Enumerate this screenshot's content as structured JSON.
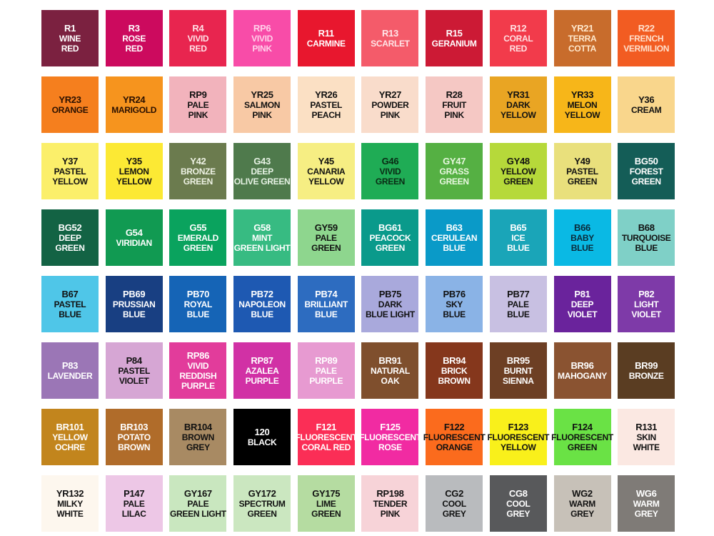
{
  "swatches": [
    {
      "code": "R1",
      "name": [
        "WINE",
        "RED"
      ],
      "color": "#7b2140",
      "text": "#ffffff"
    },
    {
      "code": "R3",
      "name": [
        "ROSE",
        "RED"
      ],
      "color": "#cc0a5e",
      "text": "#ffffff"
    },
    {
      "code": "R4",
      "name": [
        "VIVID",
        "RED"
      ],
      "color": "#e8254f",
      "text": "#ffe0e6"
    },
    {
      "code": "RP6",
      "name": [
        "VIVID",
        "PINK"
      ],
      "color": "#f84ca8",
      "text": "#ffd0ea"
    },
    {
      "code": "R11",
      "name": [
        "CARMINE"
      ],
      "color": "#e8172e",
      "text": "#ffffff"
    },
    {
      "code": "R13",
      "name": [
        "SCARLET"
      ],
      "color": "#f45b6a",
      "text": "#ffe6e8"
    },
    {
      "code": "R15",
      "name": [
        "GERANIUM"
      ],
      "color": "#cc1a35",
      "text": "#ffffff"
    },
    {
      "code": "R12",
      "name": [
        "CORAL",
        "RED"
      ],
      "color": "#f23b4b",
      "text": "#ffe0e2"
    },
    {
      "code": "YR21",
      "name": [
        "TERRA",
        "COTTA"
      ],
      "color": "#c86c2c",
      "text": "#ffe8cc"
    },
    {
      "code": "R22",
      "name": [
        "FRENCH",
        "VERMILION"
      ],
      "color": "#f25c22",
      "text": "#ffe0cc"
    },
    {
      "code": "YR23",
      "name": [
        "ORANGE"
      ],
      "color": "#f57f1e",
      "text": "#2a1000"
    },
    {
      "code": "YR24",
      "name": [
        "MARIGOLD"
      ],
      "color": "#f6941e",
      "text": "#2a1000"
    },
    {
      "code": "RP9",
      "name": [
        "PALE",
        "PINK"
      ],
      "color": "#f2b3bc",
      "text": "#111111"
    },
    {
      "code": "YR25",
      "name": [
        "SALMON",
        "PINK"
      ],
      "color": "#f8c9a5",
      "text": "#111111"
    },
    {
      "code": "YR26",
      "name": [
        "PASTEL",
        "PEACH"
      ],
      "color": "#fbe0c4",
      "text": "#111111"
    },
    {
      "code": "YR27",
      "name": [
        "POWDER",
        "PINK"
      ],
      "color": "#f9dccb",
      "text": "#111111"
    },
    {
      "code": "R28",
      "name": [
        "FRUIT",
        "PINK"
      ],
      "color": "#f5c8c4",
      "text": "#111111"
    },
    {
      "code": "YR31",
      "name": [
        "DARK",
        "YELLOW"
      ],
      "color": "#e9a523",
      "text": "#111111"
    },
    {
      "code": "YR33",
      "name": [
        "MELON",
        "YELLOW"
      ],
      "color": "#f7b619",
      "text": "#111111"
    },
    {
      "code": "Y36",
      "name": [
        "CREAM"
      ],
      "color": "#f9d68c",
      "text": "#111111"
    },
    {
      "code": "Y37",
      "name": [
        "PASTEL",
        "YELLOW"
      ],
      "color": "#fbef6a",
      "text": "#111111"
    },
    {
      "code": "Y35",
      "name": [
        "LEMON",
        "YELLOW"
      ],
      "color": "#fce934",
      "text": "#111111"
    },
    {
      "code": "Y42",
      "name": [
        "BRONZE",
        "GREEN"
      ],
      "color": "#6b7b4e",
      "text": "#eef2e4"
    },
    {
      "code": "G43",
      "name": [
        "DEEP",
        "OLIVE GREEN"
      ],
      "color": "#4f7a4c",
      "text": "#e6f2e4"
    },
    {
      "code": "Y45",
      "name": [
        "CANARIA",
        "YELLOW"
      ],
      "color": "#f6ee83",
      "text": "#111111"
    },
    {
      "code": "G46",
      "name": [
        "VIVID",
        "GREEN"
      ],
      "color": "#1fac55",
      "text": "#0a2a14"
    },
    {
      "code": "GY47",
      "name": [
        "GRASS",
        "GREEN"
      ],
      "color": "#55b043",
      "text": "#e8f8e0"
    },
    {
      "code": "GY48",
      "name": [
        "YELLOW",
        "GREEN"
      ],
      "color": "#b6d93a",
      "text": "#111111"
    },
    {
      "code": "Y49",
      "name": [
        "PASTEL",
        "GREEN"
      ],
      "color": "#e9e07c",
      "text": "#111111"
    },
    {
      "code": "BG50",
      "name": [
        "FOREST",
        "GREEN"
      ],
      "color": "#145d57",
      "text": "#ffffff"
    },
    {
      "code": "BG52",
      "name": [
        "DEEP",
        "GREEN"
      ],
      "color": "#136344",
      "text": "#ffffff"
    },
    {
      "code": "G54",
      "name": [
        "VIRIDIAN"
      ],
      "color": "#119a52",
      "text": "#ffffff"
    },
    {
      "code": "G55",
      "name": [
        "EMERALD",
        "GREEN"
      ],
      "color": "#0aa35e",
      "text": "#ffffff"
    },
    {
      "code": "G58",
      "name": [
        "MINT",
        "GREEN LIGHT"
      ],
      "color": "#37bb82",
      "text": "#ffffff"
    },
    {
      "code": "GY59",
      "name": [
        "PALE",
        "GREEN"
      ],
      "color": "#8ed68e",
      "text": "#111111"
    },
    {
      "code": "BG61",
      "name": [
        "PEACOCK",
        "GREEN"
      ],
      "color": "#0a9a8b",
      "text": "#ffffff"
    },
    {
      "code": "B63",
      "name": [
        "CERULEAN",
        "BLUE"
      ],
      "color": "#0a9ac8",
      "text": "#ffffff"
    },
    {
      "code": "B65",
      "name": [
        "ICE",
        "BLUE"
      ],
      "color": "#1aa5b8",
      "text": "#ffffff"
    },
    {
      "code": "B66",
      "name": [
        "BABY",
        "BLUE"
      ],
      "color": "#0ab9e4",
      "text": "#0a2a3a"
    },
    {
      "code": "B68",
      "name": [
        "TURQUOISE",
        "BLUE"
      ],
      "color": "#7fd0c7",
      "text": "#111111"
    },
    {
      "code": "B67",
      "name": [
        "PASTEL",
        "BLUE"
      ],
      "color": "#4fc6e8",
      "text": "#111111"
    },
    {
      "code": "PB69",
      "name": [
        "PRUSSIAN",
        "BLUE"
      ],
      "color": "#183f82",
      "text": "#ffffff"
    },
    {
      "code": "PB70",
      "name": [
        "ROYAL",
        "BLUE"
      ],
      "color": "#1564b6",
      "text": "#ffffff"
    },
    {
      "code": "PB72",
      "name": [
        "NAPOLEON",
        "BLUE"
      ],
      "color": "#1e59b2",
      "text": "#ffffff"
    },
    {
      "code": "PB74",
      "name": [
        "BRILLIANT",
        "BLUE"
      ],
      "color": "#2d6cc0",
      "text": "#ffffff"
    },
    {
      "code": "PB75",
      "name": [
        "DARK",
        "BLUE LIGHT"
      ],
      "color": "#a9a9dc",
      "text": "#111111"
    },
    {
      "code": "PB76",
      "name": [
        "SKY",
        "BLUE"
      ],
      "color": "#8ab3e6",
      "text": "#111111"
    },
    {
      "code": "PB77",
      "name": [
        "PALE",
        "BLUE"
      ],
      "color": "#c8c0e2",
      "text": "#111111"
    },
    {
      "code": "P81",
      "name": [
        "DEEP",
        "VIOLET"
      ],
      "color": "#6a239c",
      "text": "#ffffff"
    },
    {
      "code": "P82",
      "name": [
        "LIGHT",
        "VIOLET"
      ],
      "color": "#7e3aa8",
      "text": "#ffffff"
    },
    {
      "code": "P83",
      "name": [
        "LAVENDER"
      ],
      "color": "#9b76b6",
      "text": "#ffffff"
    },
    {
      "code": "P84",
      "name": [
        "PASTEL",
        "VIOLET"
      ],
      "color": "#d6a6d4",
      "text": "#111111"
    },
    {
      "code": "RP86",
      "name": [
        "VIVID REDDISH",
        "PURPLE"
      ],
      "color": "#e23c9b",
      "text": "#ffffff"
    },
    {
      "code": "RP87",
      "name": [
        "AZALEA",
        "PURPLE"
      ],
      "color": "#d131a5",
      "text": "#ffffff"
    },
    {
      "code": "RP89",
      "name": [
        "PALE",
        "PURPLE"
      ],
      "color": "#e79ad1",
      "text": "#ffffff"
    },
    {
      "code": "BR91",
      "name": [
        "NATURAL",
        "OAK"
      ],
      "color": "#7f4f2d",
      "text": "#ffffff"
    },
    {
      "code": "BR94",
      "name": [
        "BRICK",
        "BROWN"
      ],
      "color": "#85371c",
      "text": "#ffffff"
    },
    {
      "code": "BR95",
      "name": [
        "BURNT",
        "SIENNA"
      ],
      "color": "#6d3f24",
      "text": "#ffffff"
    },
    {
      "code": "BR96",
      "name": [
        "MAHOGANY"
      ],
      "color": "#8a5331",
      "text": "#ffffff"
    },
    {
      "code": "BR99",
      "name": [
        "BRONZE"
      ],
      "color": "#5a3d22",
      "text": "#ffffff"
    },
    {
      "code": "BR101",
      "name": [
        "YELLOW",
        "OCHRE"
      ],
      "color": "#c2851d",
      "text": "#ffffff"
    },
    {
      "code": "BR103",
      "name": [
        "POTATO",
        "BROWN"
      ],
      "color": "#b06c2a",
      "text": "#ffffff"
    },
    {
      "code": "BR104",
      "name": [
        "BROWN",
        "GREY"
      ],
      "color": "#a88a63",
      "text": "#111111"
    },
    {
      "code": "120",
      "name": [
        "BLACK"
      ],
      "color": "#000000",
      "text": "#ffffff"
    },
    {
      "code": "F121",
      "name": [
        "FLUORESCENT",
        "CORAL RED"
      ],
      "color": "#fb2e56",
      "text": "#ffffff"
    },
    {
      "code": "F125",
      "name": [
        "FLUORESCENT",
        "ROSE"
      ],
      "color": "#f12ba2",
      "text": "#ffffff"
    },
    {
      "code": "F122",
      "name": [
        "FLUORESCENT",
        "ORANGE"
      ],
      "color": "#fb6b1d",
      "text": "#111111"
    },
    {
      "code": "F123",
      "name": [
        "FLUORESCENT",
        "YELLOW"
      ],
      "color": "#f9f01b",
      "text": "#111111"
    },
    {
      "code": "F124",
      "name": [
        "FLUORESCENT",
        "GREEN"
      ],
      "color": "#6ae245",
      "text": "#111111"
    },
    {
      "code": "R131",
      "name": [
        "SKIN",
        "WHITE"
      ],
      "color": "#fbe8e2",
      "text": "#111111"
    },
    {
      "code": "YR132",
      "name": [
        "MILKY",
        "WHITE"
      ],
      "color": "#fdf7ee",
      "text": "#111111"
    },
    {
      "code": "P147",
      "name": [
        "PALE",
        "LILAC"
      ],
      "color": "#edc7e6",
      "text": "#111111"
    },
    {
      "code": "GY167",
      "name": [
        "PALE",
        "GREEN LIGHT"
      ],
      "color": "#c9e7bf",
      "text": "#111111"
    },
    {
      "code": "GY172",
      "name": [
        "SPECTRUM",
        "GREEN"
      ],
      "color": "#cbe7c0",
      "text": "#111111"
    },
    {
      "code": "GY175",
      "name": [
        "LIME",
        "GREEN"
      ],
      "color": "#b5dca1",
      "text": "#111111"
    },
    {
      "code": "RP198",
      "name": [
        "TENDER",
        "PINK"
      ],
      "color": "#f7d3d8",
      "text": "#111111"
    },
    {
      "code": "CG2",
      "name": [
        "COOL",
        "GREY"
      ],
      "color": "#b9bbbe",
      "text": "#111111"
    },
    {
      "code": "CG8",
      "name": [
        "COOL",
        "GREY"
      ],
      "color": "#58595b",
      "text": "#ffffff"
    },
    {
      "code": "WG2",
      "name": [
        "WARM",
        "GREY"
      ],
      "color": "#c7c1b8",
      "text": "#111111"
    },
    {
      "code": "WG6",
      "name": [
        "WARM",
        "GREY"
      ],
      "color": "#7f7b77",
      "text": "#ffffff"
    }
  ]
}
